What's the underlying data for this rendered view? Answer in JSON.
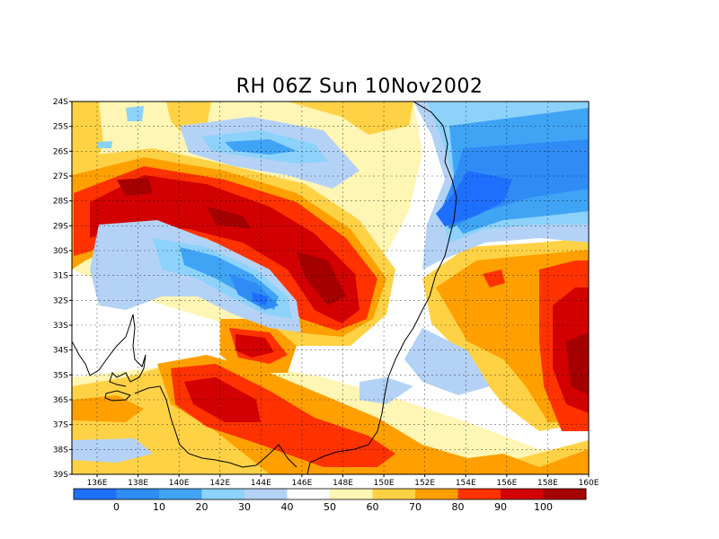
{
  "title": "RH 06Z Sun 10Nov2002",
  "lat_labels": [
    "24S",
    "25S",
    "26S",
    "27S",
    "28S",
    "29S",
    "30S",
    "31S",
    "32S",
    "33S",
    "34S",
    "35S",
    "36S",
    "37S",
    "38S",
    "39S"
  ],
  "lon_labels": [
    "136E",
    "138E",
    "140E",
    "142E",
    "144E",
    "146E",
    "148E",
    "150E",
    "152E",
    "154E",
    "156E",
    "158E",
    "160E"
  ],
  "colorbar": {
    "labels": [
      "0",
      "10",
      "20",
      "30",
      "40",
      "50",
      "60",
      "70",
      "80",
      "90",
      "100"
    ],
    "colors": [
      "#1f6fff",
      "#2f8cf5",
      "#40a4f5",
      "#8cd2fa",
      "#b4d2f5",
      "#ffffff",
      "#fff5b4",
      "#ffd246",
      "#ffa000",
      "#ff3200",
      "#d20000",
      "#a50000"
    ]
  },
  "colors": {
    "rh_lt10": "#1f6fff",
    "rh_10_20": "#2f8cf5",
    "rh_20_30": "#40a4f5",
    "rh_30_40": "#8cd2fa",
    "rh_40_50": "#b4d2f5",
    "rh_50_60": "#ffffff",
    "rh_60_70": "#fff5b4",
    "rh_70_80": "#ffd246",
    "rh_80_90": "#ffa000",
    "rh_90_100": "#ff3200",
    "rh_100": "#d20000",
    "rh_gt100": "#a50000",
    "coastline": "#000000",
    "grid": "#000000"
  }
}
